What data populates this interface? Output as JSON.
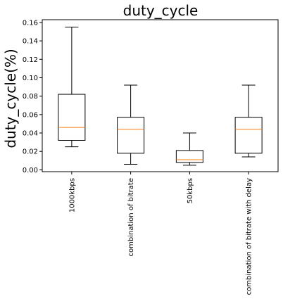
{
  "chart_data": {
    "type": "boxplot",
    "title": "duty_cycle",
    "ylabel": "duty_cycle(%)",
    "xlabel": "",
    "ylim": [
      -0.002,
      0.163
    ],
    "yticks": [
      0.0,
      0.02,
      0.04,
      0.06,
      0.08,
      0.1,
      0.12,
      0.14,
      0.16
    ],
    "ytick_labels": [
      "0.00",
      "0.02",
      "0.04",
      "0.06",
      "0.08",
      "0.10",
      "0.12",
      "0.14",
      "0.16"
    ],
    "categories": [
      "1000kbps",
      "combination of bitrate",
      "50kbps",
      "combination of bitrate with delay"
    ],
    "boxes": [
      {
        "whislo": 0.025,
        "q1": 0.032,
        "med": 0.046,
        "q3": 0.082,
        "whishi": 0.155
      },
      {
        "whislo": 0.006,
        "q1": 0.018,
        "med": 0.044,
        "q3": 0.057,
        "whishi": 0.092
      },
      {
        "whislo": 0.005,
        "q1": 0.008,
        "med": 0.011,
        "q3": 0.021,
        "whishi": 0.04
      },
      {
        "whislo": 0.014,
        "q1": 0.018,
        "med": 0.044,
        "q3": 0.057,
        "whishi": 0.092
      }
    ],
    "colors": {
      "box": "#000000",
      "median": "#ff7f0e"
    },
    "grid": false,
    "legend": "none"
  }
}
